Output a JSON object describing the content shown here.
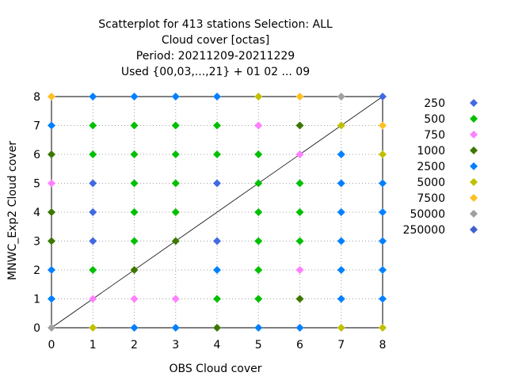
{
  "chart_data": {
    "type": "scatter",
    "title_lines": [
      "Scatterplot for  413 stations Selection: ALL",
      "Cloud cover [octas]",
      "Period: 20211209-20211229",
      "Used {00,03,...,21} + 01 02 ... 09"
    ],
    "xlabel": "OBS Cloud cover",
    "ylabel": "MNWC_Exp2 Cloud cover",
    "xlim": [
      0,
      8
    ],
    "ylim": [
      0,
      8
    ],
    "xticks": [
      "0",
      "1",
      "2",
      "3",
      "4",
      "5",
      "6",
      "7",
      "8"
    ],
    "yticks": [
      "0",
      "1",
      "2",
      "3",
      "4",
      "5",
      "6",
      "7",
      "8"
    ],
    "grid": true,
    "diagonal": true,
    "legend_position": "right",
    "series": [
      {
        "name": "250",
        "color": "#4169e1",
        "points": [
          [
            1,
            5
          ],
          [
            1,
            4
          ],
          [
            1,
            3
          ],
          [
            4,
            5
          ],
          [
            4,
            3
          ],
          [
            8,
            8
          ]
        ]
      },
      {
        "name": "500",
        "color": "#00c000",
        "points": [
          [
            1,
            7
          ],
          [
            1,
            6
          ],
          [
            1,
            2
          ],
          [
            2,
            7
          ],
          [
            2,
            6
          ],
          [
            2,
            5
          ],
          [
            2,
            4
          ],
          [
            2,
            3
          ],
          [
            3,
            7
          ],
          [
            3,
            6
          ],
          [
            3,
            5
          ],
          [
            3,
            4
          ],
          [
            4,
            7
          ],
          [
            4,
            6
          ],
          [
            4,
            1
          ],
          [
            5,
            6
          ],
          [
            5,
            5
          ],
          [
            5,
            4
          ],
          [
            5,
            3
          ],
          [
            5,
            2
          ],
          [
            5,
            1
          ],
          [
            6,
            5
          ],
          [
            6,
            4
          ],
          [
            6,
            3
          ]
        ]
      },
      {
        "name": "750",
        "color": "#ff80ff",
        "points": [
          [
            0,
            5
          ],
          [
            1,
            1
          ],
          [
            2,
            1
          ],
          [
            3,
            1
          ],
          [
            5,
            7
          ],
          [
            6,
            6
          ],
          [
            6,
            2
          ]
        ]
      },
      {
        "name": "1000",
        "color": "#3c7800",
        "points": [
          [
            0,
            6
          ],
          [
            0,
            4
          ],
          [
            0,
            3
          ],
          [
            2,
            2
          ],
          [
            3,
            3
          ],
          [
            4,
            0
          ],
          [
            6,
            7
          ],
          [
            6,
            1
          ]
        ]
      },
      {
        "name": "2500",
        "color": "#0080ff",
        "points": [
          [
            0,
            7
          ],
          [
            0,
            2
          ],
          [
            0,
            1
          ],
          [
            1,
            8
          ],
          [
            2,
            8
          ],
          [
            2,
            0
          ],
          [
            3,
            8
          ],
          [
            3,
            0
          ],
          [
            4,
            8
          ],
          [
            4,
            2
          ],
          [
            5,
            0
          ],
          [
            6,
            0
          ],
          [
            7,
            6
          ],
          [
            7,
            5
          ],
          [
            7,
            4
          ],
          [
            7,
            3
          ],
          [
            7,
            2
          ],
          [
            7,
            1
          ],
          [
            8,
            5
          ],
          [
            8,
            4
          ],
          [
            8,
            3
          ],
          [
            8,
            2
          ],
          [
            8,
            1
          ]
        ]
      },
      {
        "name": "5000",
        "color": "#c0c000",
        "points": [
          [
            1,
            0
          ],
          [
            5,
            8
          ],
          [
            7,
            7
          ],
          [
            7,
            0
          ],
          [
            8,
            6
          ],
          [
            8,
            0
          ]
        ]
      },
      {
        "name": "7500",
        "color": "#ffc020",
        "points": [
          [
            0,
            8
          ],
          [
            6,
            8
          ],
          [
            8,
            7
          ]
        ]
      },
      {
        "name": "50000",
        "color": "#a0a0a0",
        "points": [
          [
            0,
            0
          ],
          [
            7,
            8
          ]
        ]
      },
      {
        "name": "250000",
        "color": "#4060d0",
        "points": []
      }
    ]
  }
}
